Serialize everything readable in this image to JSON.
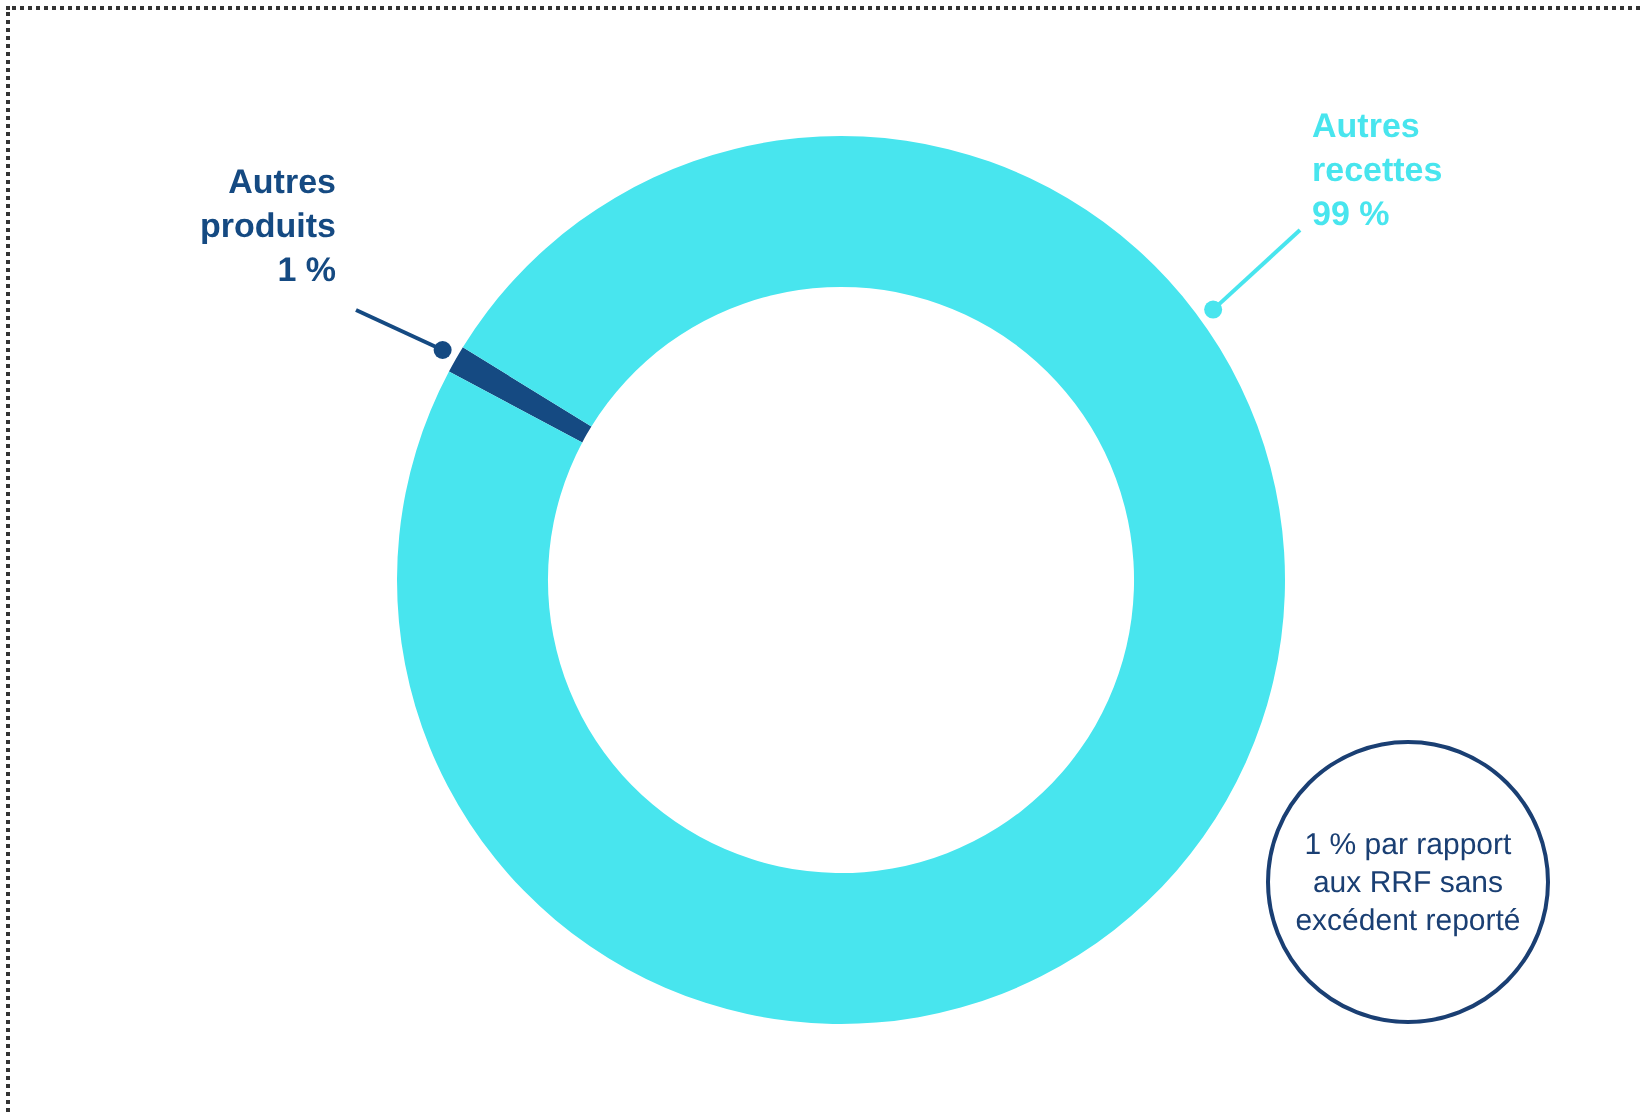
{
  "chart_data": {
    "type": "donut",
    "categories": [
      "Autres produits",
      "Autres recettes"
    ],
    "values": [
      1,
      99
    ],
    "colors": [
      "#154a82",
      "#48e5ee"
    ],
    "value_labels": [
      "1 %",
      "99 %"
    ],
    "annotations": [
      "1 % par rapport aux RRF sans excédent reporté"
    ],
    "legend": false
  }
}
